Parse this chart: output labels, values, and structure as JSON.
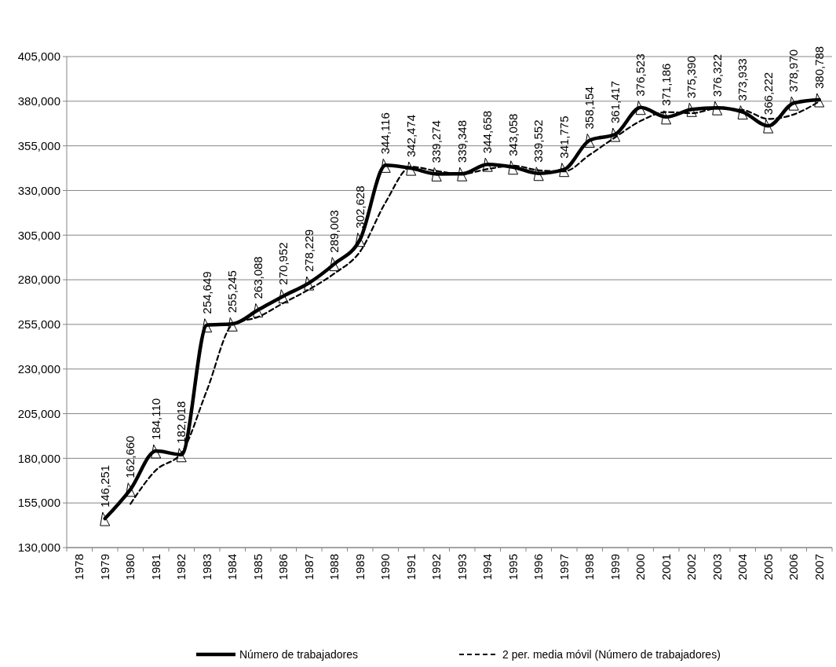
{
  "chart_data": {
    "type": "line",
    "categories": [
      "1978",
      "1979",
      "1980",
      "1981",
      "1982",
      "1983",
      "1984",
      "1985",
      "1986",
      "1987",
      "1988",
      "1989",
      "1990",
      "1991",
      "1992",
      "1993",
      "1994",
      "1995",
      "1996",
      "1997",
      "1998",
      "1999",
      "2000",
      "2001",
      "2002",
      "2003",
      "2004",
      "2005",
      "2006",
      "2007"
    ],
    "series": [
      {
        "name": "Número de  trabajadores",
        "color": "#000000",
        "line_style": "solid",
        "marker": "triangle",
        "values": [
          null,
          146251,
          162660,
          184110,
          182018,
          254649,
          255245,
          263088,
          270952,
          278229,
          289003,
          302628,
          344116,
          342474,
          339274,
          339348,
          344658,
          343058,
          339552,
          341775,
          358154,
          361417,
          376523,
          371186,
          375390,
          376322,
          373933,
          366222,
          378970,
          380788
        ],
        "value_labels": [
          null,
          "146,251",
          "162,660",
          "184,110",
          "182,018",
          "254,649",
          "255,245",
          "263,088",
          "270,952",
          "278,229",
          "289,003",
          "302,628",
          "344,116",
          "342,474",
          "339,274",
          "339,348",
          "344,658",
          "343,058",
          "339,552",
          "341,775",
          "358,154",
          "361,417",
          "376,523",
          "371,186",
          "375,390",
          "376,322",
          "373,933",
          "366,222",
          "378,970",
          "380,788"
        ]
      },
      {
        "name": "2 per. media móvil (Número de  trabajadores)",
        "color": "#000000",
        "line_style": "dashed",
        "marker": "none",
        "values": [
          null,
          null,
          154500,
          173400,
          183100,
          218300,
          254900,
          259200,
          267000,
          274600,
          283600,
          295800,
          323400,
          343300,
          340900,
          339300,
          342000,
          343900,
          341300,
          340700,
          350000,
          359800,
          369000,
          373900,
          373300,
          375900,
          375100,
          370100,
          372600,
          379900
        ]
      }
    ],
    "ylim": [
      130000,
      405000
    ],
    "yticks": [
      {
        "value": 130000,
        "label": "130,000"
      },
      {
        "value": 155000,
        "label": "155,000"
      },
      {
        "value": 180000,
        "label": "180,000"
      },
      {
        "value": 205000,
        "label": "205,000"
      },
      {
        "value": 230000,
        "label": "230,000"
      },
      {
        "value": 255000,
        "label": "255,000"
      },
      {
        "value": 280000,
        "label": "280,000"
      },
      {
        "value": 305000,
        "label": "305,000"
      },
      {
        "value": 330000,
        "label": "330,000"
      },
      {
        "value": 355000,
        "label": "355,000"
      },
      {
        "value": 380000,
        "label": "380,000"
      },
      {
        "value": 405000,
        "label": "405,000"
      }
    ],
    "grid": "y",
    "legend": "bottom"
  }
}
